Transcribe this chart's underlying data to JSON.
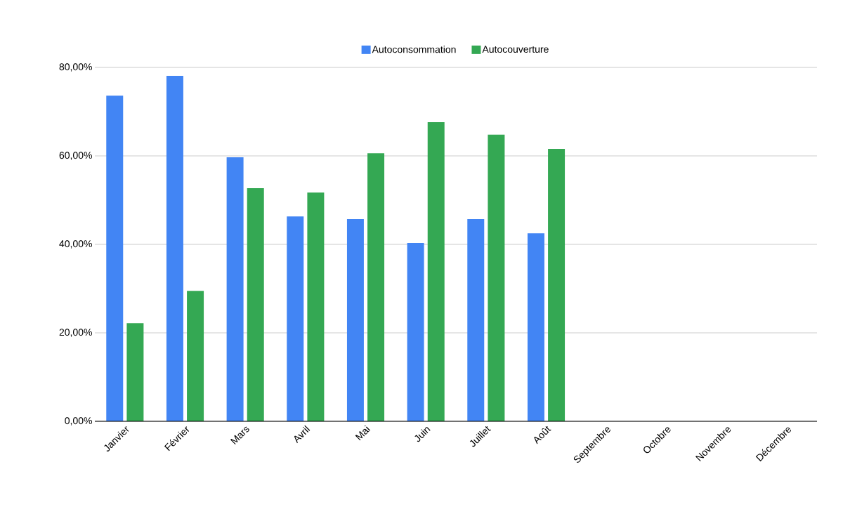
{
  "chart_data": {
    "type": "bar",
    "categories": [
      "Janvier",
      "Février",
      "Mars",
      "Avril",
      "Mai",
      "Juin",
      "Juillet",
      "Août",
      "Septembre",
      "Octobre",
      "Novembre",
      "Décembre"
    ],
    "series": [
      {
        "name": "Autoconsommation",
        "color": "#4285f4",
        "values": [
          73.6,
          78.1,
          59.7,
          46.3,
          45.7,
          40.3,
          45.7,
          42.5,
          null,
          null,
          null,
          null
        ]
      },
      {
        "name": "Autocouverture",
        "color": "#34a853",
        "values": [
          22.2,
          29.5,
          52.7,
          51.7,
          60.6,
          67.6,
          64.8,
          61.6,
          null,
          null,
          null,
          null
        ]
      }
    ],
    "ylim": [
      0,
      80
    ],
    "yticks": [
      {
        "value": 0,
        "label": "0,00%"
      },
      {
        "value": 20,
        "label": "20,00%"
      },
      {
        "value": 40,
        "label": "40,00%"
      },
      {
        "value": 60,
        "label": "60,00%"
      },
      {
        "value": 80,
        "label": "80,00%"
      }
    ],
    "grid": "y",
    "legend": "top"
  }
}
